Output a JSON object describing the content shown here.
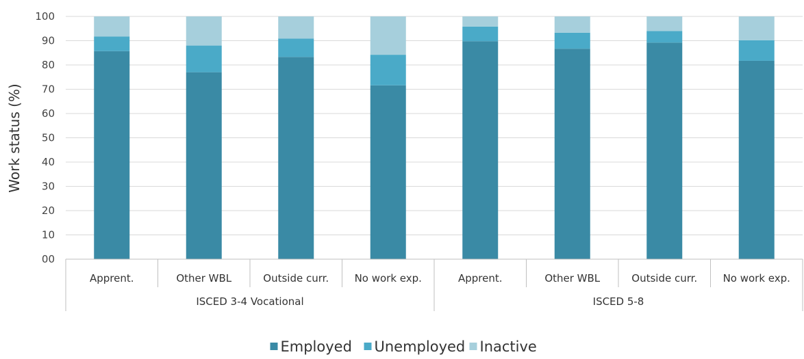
{
  "chart_data": {
    "type": "bar",
    "stacked": true,
    "title": "",
    "ylabel": "Work status (%)",
    "ylim": [
      0,
      100
    ],
    "yticks": [
      "00",
      "10",
      "20",
      "30",
      "40",
      "50",
      "60",
      "70",
      "80",
      "90",
      "100"
    ],
    "grid": true,
    "legend_position": "bottom",
    "groups": [
      {
        "label": "ISCED 3-4 Vocational",
        "categories": [
          "Apprent.",
          "Other WBL",
          "Outside curr.",
          "No work exp."
        ]
      },
      {
        "label": "ISCED 5-8",
        "categories": [
          "Apprent.",
          "Other WBL",
          "Outside curr.",
          "No work exp."
        ]
      }
    ],
    "categories": [
      "Apprent.",
      "Other WBL",
      "Outside curr.",
      "No work exp.",
      "Apprent.",
      "Other WBL",
      "Outside curr.",
      "No work exp."
    ],
    "series": [
      {
        "name": "Employed",
        "color": "#3a8aa5",
        "values": [
          85.7,
          77,
          83.3,
          71.6,
          89.8,
          86.7,
          89.2,
          81.7
        ]
      },
      {
        "name": "Unemployed",
        "color": "#4aaac8",
        "values": [
          6,
          11,
          7.6,
          12.6,
          6,
          6.6,
          4.8,
          8.5
        ]
      },
      {
        "name": "Inactive",
        "color": "#a6cfdc",
        "values": [
          8.3,
          12,
          9.1,
          15.8,
          4.2,
          6.7,
          6,
          9.8
        ]
      }
    ]
  }
}
